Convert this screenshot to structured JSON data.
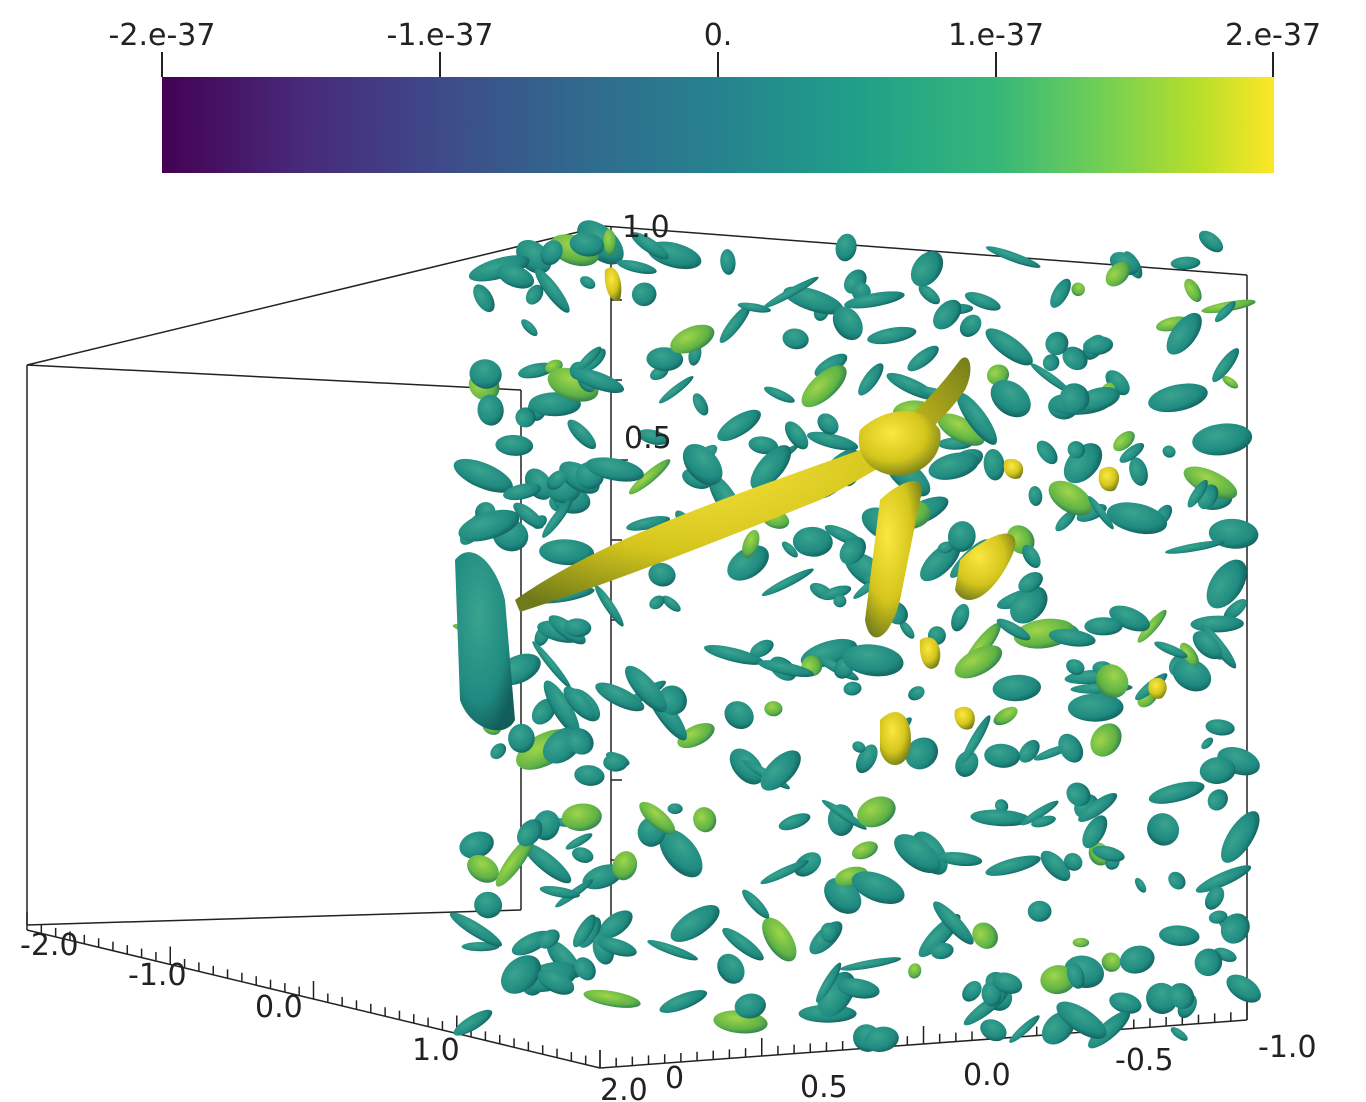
{
  "colorbar": {
    "labels": [
      "-2.e-37",
      "-1.e-37",
      "0.",
      "1.e-37",
      "2.e-37"
    ],
    "colormap": "viridis",
    "colors": [
      "#440154",
      "#3e4a89",
      "#26828e",
      "#35b779",
      "#fde725"
    ]
  },
  "axes": {
    "top_label": "1.0",
    "vertical_labels": [
      "0.5"
    ],
    "bottom_left_labels": [
      "-2.0",
      "-1.0",
      "0.0",
      "1.0",
      "2.0"
    ],
    "bottom_right_labels": [
      "0",
      "0.5",
      "0.0",
      "-0.5",
      "-1.0"
    ]
  },
  "render": {
    "surface_base_color": "#1f8a80",
    "surface_highlight_color": "#e8d21f",
    "surface_mid_color": "#6ac040"
  }
}
